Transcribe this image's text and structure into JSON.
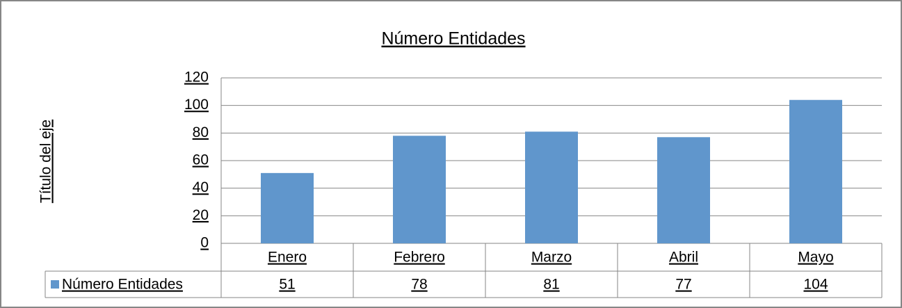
{
  "chart_data": {
    "type": "bar",
    "title": "Número Entidades",
    "y_label": "Título del eje",
    "categories": [
      "Enero",
      "Febrero",
      "Marzo",
      "Abril",
      "Mayo"
    ],
    "series": [
      {
        "name": "Número Entidades",
        "color": "#6096cc",
        "values": [
          51,
          78,
          81,
          77,
          104
        ]
      }
    ],
    "ylim": [
      0,
      120
    ],
    "yticks": [
      0,
      20,
      40,
      60,
      80,
      100,
      120
    ],
    "grid": true,
    "data_table": true
  }
}
